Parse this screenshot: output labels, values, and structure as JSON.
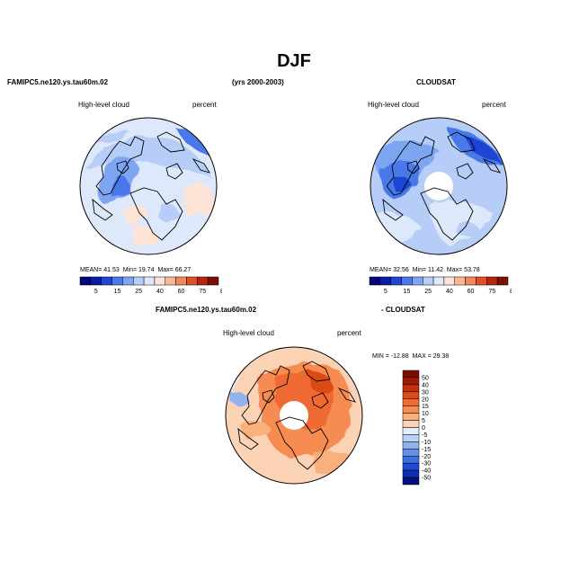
{
  "header": {
    "title": "DJF",
    "case_name": "FAMIPC5.ne120.ys.tau60m.02",
    "years": "(yrs 2000-2003)",
    "obs_name": "CLOUDSAT",
    "diff_case_name": "FAMIPC5.ne120.ys.tau60m.02",
    "diff_obs_name": "- CLOUDSAT"
  },
  "chart_data": [
    {
      "type": "heatmap",
      "projection": "polar-stereographic-north",
      "variable": "High-level cloud",
      "units": "percent",
      "stats": {
        "mean_label": "MEAN=",
        "mean": "41.53",
        "min_label": "Min=",
        "min": "19.74",
        "max_label": "Max=",
        "max": "66.27"
      },
      "colorbar": {
        "orientation": "horizontal",
        "levels": [
          "5",
          "15",
          "25",
          "40",
          "60",
          "75",
          "85",
          "95"
        ],
        "colors": [
          "#04047a",
          "#0b1ca8",
          "#1f45d4",
          "#4a78ea",
          "#7ea5f2",
          "#b6cdf7",
          "#dde9fb",
          "#fde4d6",
          "#f9b894",
          "#f3865c",
          "#e14f26",
          "#b8240d",
          "#7a1005"
        ]
      },
      "polar_hole": false
    },
    {
      "type": "heatmap",
      "projection": "polar-stereographic-north",
      "variable": "High-level cloud",
      "units": "percent",
      "stats": {
        "mean_label": "MEAN=",
        "mean": "32.56",
        "min_label": "Min=",
        "min": "11.42",
        "max_label": "Max=",
        "max": "53.78"
      },
      "colorbar": {
        "orientation": "horizontal",
        "levels": [
          "5",
          "15",
          "25",
          "40",
          "60",
          "75",
          "85",
          "95"
        ],
        "colors": [
          "#04047a",
          "#0b1ca8",
          "#1f45d4",
          "#4a78ea",
          "#7ea5f2",
          "#b6cdf7",
          "#dde9fb",
          "#fde4d6",
          "#f9b894",
          "#f3865c",
          "#e14f26",
          "#b8240d",
          "#7a1005"
        ]
      },
      "polar_hole": true
    },
    {
      "type": "heatmap",
      "projection": "polar-stereographic-north",
      "variable": "High-level cloud",
      "units": "percent",
      "stats": {
        "min_label": "MIN =",
        "min": "-12.88",
        "max_label": "MAX =",
        "max": "29.38"
      },
      "colorbar": {
        "orientation": "vertical",
        "levels": [
          "50",
          "40",
          "30",
          "20",
          "15",
          "10",
          "5",
          "0",
          "-5",
          "-10",
          "-15",
          "-20",
          "-30",
          "-40",
          "-50"
        ],
        "colors": [
          "#7a0d03",
          "#a01a06",
          "#c3300c",
          "#dc4b18",
          "#ef6b30",
          "#f78c52",
          "#fab07c",
          "#fcd3b5",
          "#e6eefb",
          "#bcd2f5",
          "#91b2ef",
          "#6590e8",
          "#3d6ee0",
          "#1f4bd2",
          "#0e2cb5",
          "#050f80"
        ]
      },
      "polar_hole": true
    }
  ]
}
